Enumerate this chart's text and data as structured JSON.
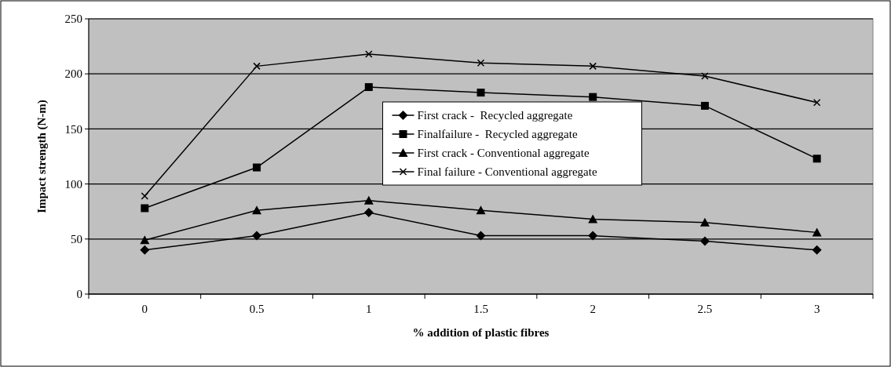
{
  "chart_data": {
    "type": "line",
    "xlabel": "% addition of plastic fibres",
    "ylabel": "Impact strength (N-m)",
    "categories": [
      "0",
      "0.5",
      "1",
      "1.5",
      "2",
      "2.5",
      "3"
    ],
    "series": [
      {
        "name": "First crack -  Recycled aggregate",
        "color": "#000000",
        "marker": "diamond",
        "values": [
          40,
          53,
          74,
          53,
          53,
          48,
          40
        ]
      },
      {
        "name": "Finalfailure -  Recycled aggregate",
        "color": "#000000",
        "marker": "square",
        "values": [
          78,
          115,
          188,
          183,
          179,
          171,
          123
        ]
      },
      {
        "name": "First crack - Conventional aggregate",
        "color": "#000000",
        "marker": "triangle",
        "values": [
          49,
          76,
          85,
          76,
          68,
          65,
          56
        ]
      },
      {
        "name": "Final failure - Conventional aggregate",
        "color": "#000000",
        "marker": "cross",
        "values": [
          89,
          207,
          218,
          210,
          207,
          198,
          174
        ]
      }
    ],
    "ylim": [
      0,
      250
    ],
    "yticks": [
      0,
      50,
      100,
      150,
      200,
      250
    ],
    "grid": "y",
    "legend": "center",
    "line_style": "solid"
  }
}
